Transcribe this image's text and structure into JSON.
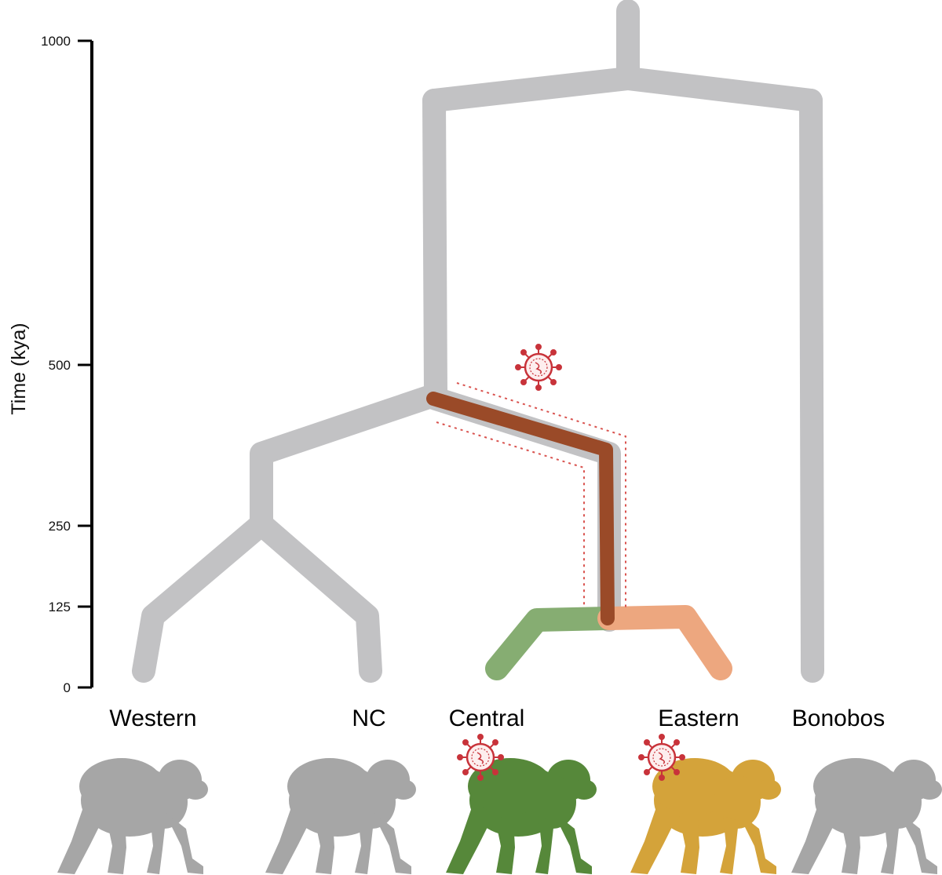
{
  "axis": {
    "title": "Time (kya)",
    "ticks": [
      "1000",
      "500",
      "250",
      "125",
      "0"
    ]
  },
  "populations": [
    {
      "name": "Western",
      "silhouette_color": "#a6a6a6",
      "virus": false
    },
    {
      "name": "NC",
      "silhouette_color": "#a6a6a6",
      "virus": false
    },
    {
      "name": "Central",
      "silhouette_color": "#56883a",
      "virus": true
    },
    {
      "name": "Eastern",
      "silhouette_color": "#d4a33a",
      "virus": true
    },
    {
      "name": "Bonobos",
      "silhouette_color": "#a6a6a6",
      "virus": false
    }
  ],
  "colors": {
    "tree": "#c2c2c4",
    "introgression": "#9a4a28",
    "central_branch": "#86ad72",
    "eastern_branch": "#eda77f",
    "virus": "#c8333a",
    "dotted_outline": "#d9534f"
  },
  "icons": {
    "virus": "virus-icon",
    "chimp": "chimpanzee-silhouette-icon"
  }
}
